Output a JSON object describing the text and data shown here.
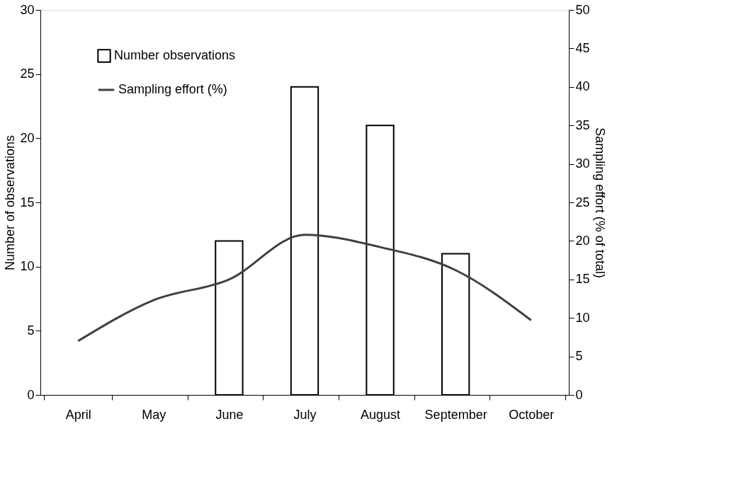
{
  "chart_data": {
    "type": "bar",
    "categories": [
      "April",
      "May",
      "June",
      "July",
      "August",
      "September",
      "October"
    ],
    "ylabel": "Number of observations",
    "y2label": "Sampling effort (% of total)",
    "ylim": [
      0,
      30
    ],
    "yticks": [
      0,
      5,
      10,
      15,
      20,
      25,
      30
    ],
    "y2lim": [
      0,
      50
    ],
    "y2ticks": [
      0,
      5,
      10,
      15,
      20,
      25,
      30,
      35,
      40,
      45,
      50
    ],
    "grid": false,
    "legend": "top left",
    "series": [
      {
        "name": "Number observations",
        "color": "#000000",
        "values": [
          null,
          null,
          12,
          24,
          21,
          11,
          null
        ]
      },
      {
        "name": "Sampling effort (%)",
        "type": "line",
        "axis": "y2",
        "color": "#404040",
        "line_style": "solid",
        "values": [
          7,
          12.3,
          15,
          20.8,
          19.2,
          16.2,
          9.7
        ]
      }
    ]
  }
}
